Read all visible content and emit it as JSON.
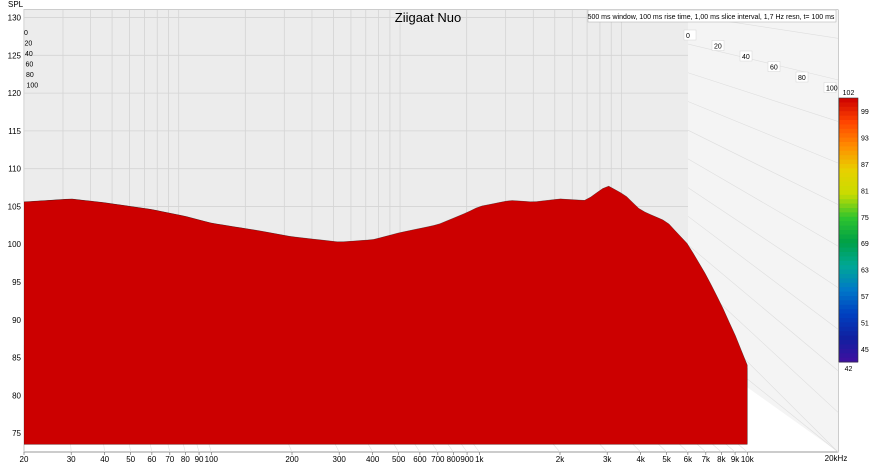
{
  "chart_data": {
    "type": "waterfall-3d",
    "title": "Ziigaat Nuo",
    "settings": "500 ms window, 100 ms rise time, 1,00 ms slice interval, 1,7 Hz resn, t= 100 ms",
    "ylabel": "SPL",
    "xunit_label": "20kHz",
    "x_ticks": [
      {
        "f": 20,
        "label": "20"
      },
      {
        "f": 30,
        "label": "30"
      },
      {
        "f": 40,
        "label": "40"
      },
      {
        "f": 50,
        "label": "50"
      },
      {
        "f": 60,
        "label": "60"
      },
      {
        "f": 70,
        "label": "70"
      },
      {
        "f": 80,
        "label": "80"
      },
      {
        "f": 90,
        "label": "90"
      },
      {
        "f": 100,
        "label": "100"
      },
      {
        "f": 200,
        "label": "200"
      },
      {
        "f": 300,
        "label": "300"
      },
      {
        "f": 400,
        "label": "400"
      },
      {
        "f": 500,
        "label": "500"
      },
      {
        "f": 600,
        "label": "600"
      },
      {
        "f": 700,
        "label": "700"
      },
      {
        "f": 800,
        "label": "800"
      },
      {
        "f": 900,
        "label": "900"
      },
      {
        "f": 1000,
        "label": "1k"
      },
      {
        "f": 2000,
        "label": "2k"
      },
      {
        "f": 3000,
        "label": "3k"
      },
      {
        "f": 4000,
        "label": "4k"
      },
      {
        "f": 5000,
        "label": "5k"
      },
      {
        "f": 6000,
        "label": "6k"
      },
      {
        "f": 7000,
        "label": "7k"
      },
      {
        "f": 8000,
        "label": "8k"
      },
      {
        "f": 9000,
        "label": "9k"
      },
      {
        "f": 10000,
        "label": "10k"
      }
    ],
    "xlim": [
      20,
      20000
    ],
    "y_ticks": [
      "75",
      "80",
      "85",
      "90",
      "95",
      "100",
      "105",
      "110",
      "115",
      "120",
      "125",
      "130"
    ],
    "ylim": [
      72.5,
      131
    ],
    "time_ticks_back": [
      "0",
      "20",
      "40",
      "60",
      "80",
      "100"
    ],
    "time_ticks_side": [
      "0",
      "20",
      "40",
      "60",
      "80",
      "100"
    ],
    "time_unit": "ms",
    "colorbar": {
      "ticks": [
        "102",
        "99",
        "93",
        "87",
        "81",
        "75",
        "69",
        "63",
        "57",
        "51",
        "45",
        "42"
      ],
      "range": [
        42,
        102
      ],
      "colors": [
        "#cc0000",
        "#ff4400",
        "#ff8c00",
        "#e8d000",
        "#c8dc00",
        "#2ec42e",
        "#00a046",
        "#00a896",
        "#0078c8",
        "#0040c0",
        "#1020a0",
        "#4010a0"
      ]
    },
    "grid": true,
    "front_response": [
      {
        "f": 20,
        "spl": 105.6
      },
      {
        "f": 30,
        "spl": 106.0
      },
      {
        "f": 40,
        "spl": 105.5
      },
      {
        "f": 60,
        "spl": 104.6
      },
      {
        "f": 80,
        "spl": 103.7
      },
      {
        "f": 100,
        "spl": 102.8
      },
      {
        "f": 150,
        "spl": 101.8
      },
      {
        "f": 200,
        "spl": 101.0
      },
      {
        "f": 300,
        "spl": 100.3
      },
      {
        "f": 400,
        "spl": 100.6
      },
      {
        "f": 500,
        "spl": 101.5
      },
      {
        "f": 700,
        "spl": 102.6
      },
      {
        "f": 900,
        "spl": 104.2
      },
      {
        "f": 1000,
        "spl": 105.0
      },
      {
        "f": 1300,
        "spl": 105.8
      },
      {
        "f": 1600,
        "spl": 105.6
      },
      {
        "f": 2000,
        "spl": 106.0
      },
      {
        "f": 2500,
        "spl": 105.8
      },
      {
        "f": 3000,
        "spl": 107.8
      },
      {
        "f": 3500,
        "spl": 106.5
      },
      {
        "f": 4000,
        "spl": 104.5
      },
      {
        "f": 5000,
        "spl": 103.0
      },
      {
        "f": 6000,
        "spl": 100.0
      },
      {
        "f": 7000,
        "spl": 96.0
      },
      {
        "f": 8000,
        "spl": 92.0
      },
      {
        "f": 9000,
        "spl": 88.0
      },
      {
        "f": 10000,
        "spl": 84.0
      }
    ],
    "floor_spl": 73.5,
    "slice_count": 100
  }
}
